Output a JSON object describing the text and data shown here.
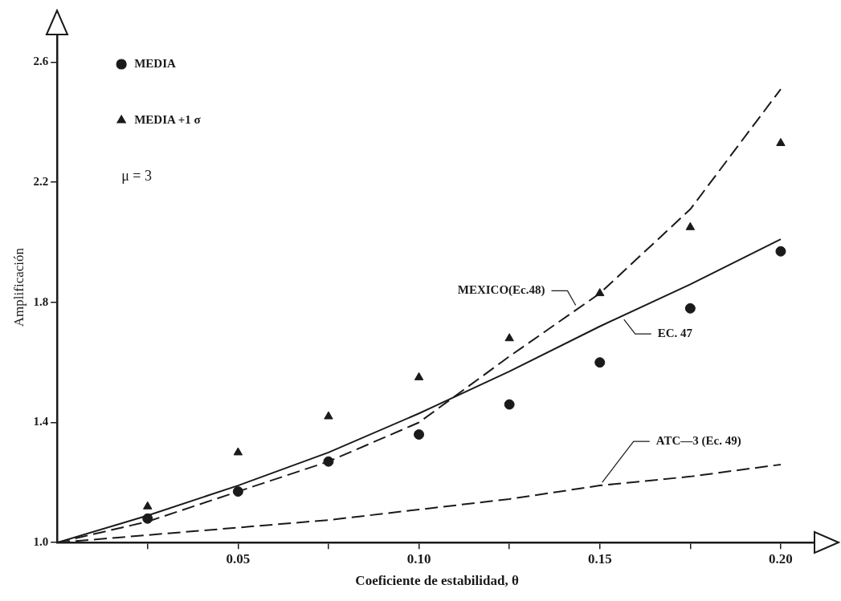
{
  "chart_data": {
    "type": "line",
    "xlabel": "Coeficiente de estabilidad, θ",
    "ylabel": "Amplificación",
    "xlim": [
      0,
      0.21
    ],
    "ylim": [
      1.0,
      2.7
    ],
    "xticks": [
      {
        "value": 0.025,
        "label": null
      },
      0.05,
      {
        "value": 0.075,
        "label": null
      },
      {
        "value": 0.1,
        "label": "0.10"
      },
      {
        "value": 0.125,
        "label": null
      },
      0.15,
      {
        "value": 0.175,
        "label": null
      },
      {
        "value": 0.2,
        "label": "0.20"
      }
    ],
    "yticks": [
      {
        "value": 1.0,
        "label": "1.0"
      },
      1.4,
      1.8,
      2.2,
      2.6
    ],
    "grid": false,
    "legend": "top left",
    "annotations": [
      "μ = 3"
    ],
    "series": [
      {
        "name": "MEDIA",
        "type": "scatter",
        "marker": "circle",
        "color": "#1a1a1a",
        "x": [
          0.025,
          0.05,
          0.075,
          0.1,
          0.125,
          0.15,
          0.175,
          0.2
        ],
        "values": [
          1.08,
          1.17,
          1.27,
          1.36,
          1.46,
          1.6,
          1.78,
          1.97
        ]
      },
      {
        "name": "MEDIA +1 σ",
        "type": "scatter",
        "marker": "triangle",
        "color": "#1a1a1a",
        "x": [
          0.025,
          0.05,
          0.075,
          0.1,
          0.125,
          0.15,
          0.175,
          0.2
        ],
        "values": [
          1.12,
          1.3,
          1.42,
          1.55,
          1.68,
          1.83,
          2.05,
          2.33
        ]
      },
      {
        "name": "MEXICO(Ec.48)",
        "marker": "none",
        "line_style": "dashed",
        "color": "#1a1a1a",
        "x": [
          0,
          0.025,
          0.05,
          0.075,
          0.1,
          0.125,
          0.15,
          0.175,
          0.2
        ],
        "values": [
          1.0,
          1.07,
          1.17,
          1.27,
          1.4,
          1.62,
          1.83,
          2.11,
          2.51
        ]
      },
      {
        "name": "EC. 47",
        "marker": "none",
        "line_style": "solid",
        "color": "#1a1a1a",
        "x": [
          0,
          0.025,
          0.05,
          0.075,
          0.1,
          0.125,
          0.15,
          0.175,
          0.2
        ],
        "values": [
          1.0,
          1.09,
          1.19,
          1.3,
          1.43,
          1.57,
          1.72,
          1.86,
          2.01
        ]
      },
      {
        "name": "ATC—3 (Ec. 49)",
        "marker": "none",
        "line_style": "dashed",
        "color": "#1a1a1a",
        "x": [
          0,
          0.025,
          0.05,
          0.075,
          0.1,
          0.125,
          0.15,
          0.175,
          0.2
        ],
        "values": [
          1.0,
          1.025,
          1.05,
          1.075,
          1.11,
          1.145,
          1.19,
          1.22,
          1.26
        ]
      }
    ]
  }
}
